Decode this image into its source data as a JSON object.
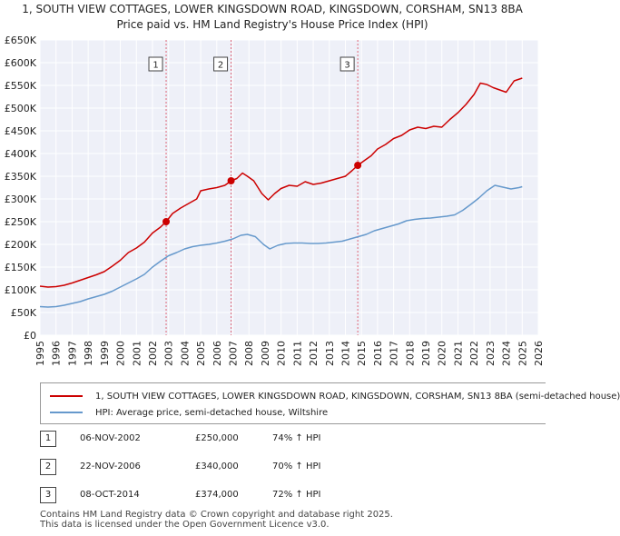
{
  "title_line1": "1, SOUTH VIEW COTTAGES, LOWER KINGSDOWN ROAD, KINGSDOWN, CORSHAM, SN13 8BA",
  "title_line2": "Price paid vs. HM Land Registry's House Price Index (HPI)",
  "chart_data": {
    "type": "line",
    "title": "1, SOUTH VIEW COTTAGES, LOWER KINGSDOWN ROAD, KINGSDOWN, CORSHAM, SN13 8BA",
    "subtitle": "Price paid vs. HM Land Registry's House Price Index (HPI)",
    "xlim": [
      1995,
      2026
    ],
    "ylim": [
      0,
      650000
    ],
    "x_ticks": [
      "1995",
      "1996",
      "1997",
      "1998",
      "1999",
      "2000",
      "2001",
      "2002",
      "2003",
      "2004",
      "2005",
      "2006",
      "2007",
      "2008",
      "2009",
      "2010",
      "2011",
      "2012",
      "2013",
      "2014",
      "2015",
      "2016",
      "2017",
      "2018",
      "2019",
      "2020",
      "2021",
      "2022",
      "2023",
      "2024",
      "2025",
      "2026"
    ],
    "y_ticks": [
      {
        "value": 0,
        "label": "£0"
      },
      {
        "value": 50000,
        "label": "£50K"
      },
      {
        "value": 100000,
        "label": "£100K"
      },
      {
        "value": 150000,
        "label": "£150K"
      },
      {
        "value": 200000,
        "label": "£200K"
      },
      {
        "value": 250000,
        "label": "£250K"
      },
      {
        "value": 300000,
        "label": "£300K"
      },
      {
        "value": 350000,
        "label": "£350K"
      },
      {
        "value": 400000,
        "label": "£400K"
      },
      {
        "value": 450000,
        "label": "£450K"
      },
      {
        "value": 500000,
        "label": "£500K"
      },
      {
        "value": 550000,
        "label": "£550K"
      },
      {
        "value": 600000,
        "label": "£600K"
      },
      {
        "value": 650000,
        "label": "£650K"
      }
    ],
    "grid": true,
    "series": [
      {
        "name": "1, SOUTH VIEW COTTAGES, LOWER KINGSDOWN ROAD, KINGSDOWN, CORSHAM, SN13 8BA (semi-detached house)",
        "color": "#cc0000",
        "x": [
          1995.0,
          1995.5,
          1996.0,
          1996.5,
          1997.0,
          1997.5,
          1998.0,
          1998.5,
          1999.0,
          1999.5,
          2000.0,
          2000.5,
          2001.0,
          2001.5,
          2002.0,
          2002.5,
          2002.85,
          2003.25,
          2003.75,
          2004.25,
          2004.75,
          2005.0,
          2005.5,
          2006.0,
          2006.5,
          2006.9,
          2007.25,
          2007.6,
          2007.9,
          2008.3,
          2008.8,
          2009.2,
          2009.6,
          2010.0,
          2010.5,
          2011.0,
          2011.5,
          2012.0,
          2012.5,
          2013.0,
          2013.5,
          2014.0,
          2014.4,
          2014.77,
          2015.2,
          2015.6,
          2016.0,
          2016.5,
          2017.0,
          2017.5,
          2018.0,
          2018.5,
          2019.0,
          2019.5,
          2020.0,
          2020.5,
          2021.0,
          2021.5,
          2022.0,
          2022.4,
          2022.8,
          2023.2,
          2023.6,
          2024.0,
          2024.5,
          2025.0
        ],
        "values": [
          108000,
          106000,
          107000,
          110000,
          115000,
          121000,
          127000,
          133000,
          140000,
          152000,
          165000,
          182000,
          192000,
          205000,
          225000,
          238000,
          250000,
          268000,
          280000,
          290000,
          300000,
          318000,
          322000,
          325000,
          330000,
          340000,
          345000,
          357000,
          350000,
          340000,
          312000,
          298000,
          312000,
          323000,
          330000,
          328000,
          338000,
          332000,
          335000,
          340000,
          345000,
          350000,
          362000,
          374000,
          385000,
          395000,
          410000,
          420000,
          433000,
          440000,
          452000,
          458000,
          455000,
          460000,
          458000,
          475000,
          490000,
          508000,
          530000,
          555000,
          552000,
          545000,
          540000,
          535000,
          560000,
          566000
        ]
      },
      {
        "name": "HPI: Average price, semi-detached house, Wiltshire",
        "color": "#6699cc",
        "x": [
          1995.0,
          1995.5,
          1996.0,
          1996.5,
          1997.0,
          1997.5,
          1998.0,
          1998.5,
          1999.0,
          1999.5,
          2000.0,
          2000.5,
          2001.0,
          2001.5,
          2002.0,
          2002.5,
          2003.0,
          2003.5,
          2004.0,
          2004.5,
          2005.0,
          2005.5,
          2006.0,
          2006.5,
          2007.0,
          2007.5,
          2007.9,
          2008.4,
          2008.9,
          2009.3,
          2009.8,
          2010.3,
          2010.8,
          2011.3,
          2011.8,
          2012.3,
          2012.8,
          2013.3,
          2013.8,
          2014.3,
          2014.8,
          2015.3,
          2015.8,
          2016.3,
          2016.8,
          2017.3,
          2017.8,
          2018.3,
          2018.8,
          2019.3,
          2019.8,
          2020.3,
          2020.8,
          2021.3,
          2021.8,
          2022.3,
          2022.8,
          2023.3,
          2023.8,
          2024.3,
          2024.8,
          2025.0
        ],
        "values": [
          63000,
          62000,
          63000,
          66000,
          70000,
          74000,
          80000,
          85000,
          90000,
          97000,
          106000,
          115000,
          124000,
          134000,
          150000,
          163000,
          175000,
          182000,
          190000,
          195000,
          198000,
          200000,
          203000,
          207000,
          212000,
          220000,
          222000,
          217000,
          200000,
          190000,
          198000,
          202000,
          203000,
          203000,
          202000,
          202000,
          203000,
          205000,
          207000,
          212000,
          217000,
          222000,
          230000,
          235000,
          240000,
          245000,
          252000,
          255000,
          257000,
          258000,
          260000,
          262000,
          265000,
          275000,
          288000,
          302000,
          318000,
          330000,
          326000,
          322000,
          325000,
          327000
        ]
      }
    ],
    "transactions": [
      {
        "num": "1",
        "x": 2002.85,
        "value": 250000,
        "date": "06-NOV-2002",
        "price": "£250,000",
        "hpi": "74% ↑ HPI"
      },
      {
        "num": "2",
        "x": 2006.89,
        "value": 340000,
        "date": "22-NOV-2006",
        "price": "£340,000",
        "hpi": "70% ↑ HPI"
      },
      {
        "num": "3",
        "x": 2014.77,
        "value": 374000,
        "date": "08-OCT-2014",
        "price": "£374,000",
        "hpi": "72% ↑ HPI"
      }
    ]
  },
  "legend": {
    "property_label": "1, SOUTH VIEW COTTAGES, LOWER KINGSDOWN ROAD, KINGSDOWN, CORSHAM, SN13 8BA (semi-detached house)",
    "hpi_label": "HPI: Average price, semi-detached house, Wiltshire",
    "property_color": "#cc0000",
    "hpi_color": "#6699cc"
  },
  "footer": {
    "line1": "Contains HM Land Registry data © Crown copyright and database right 2025.",
    "line2": "This data is licensed under the Open Government Licence v3.0."
  }
}
